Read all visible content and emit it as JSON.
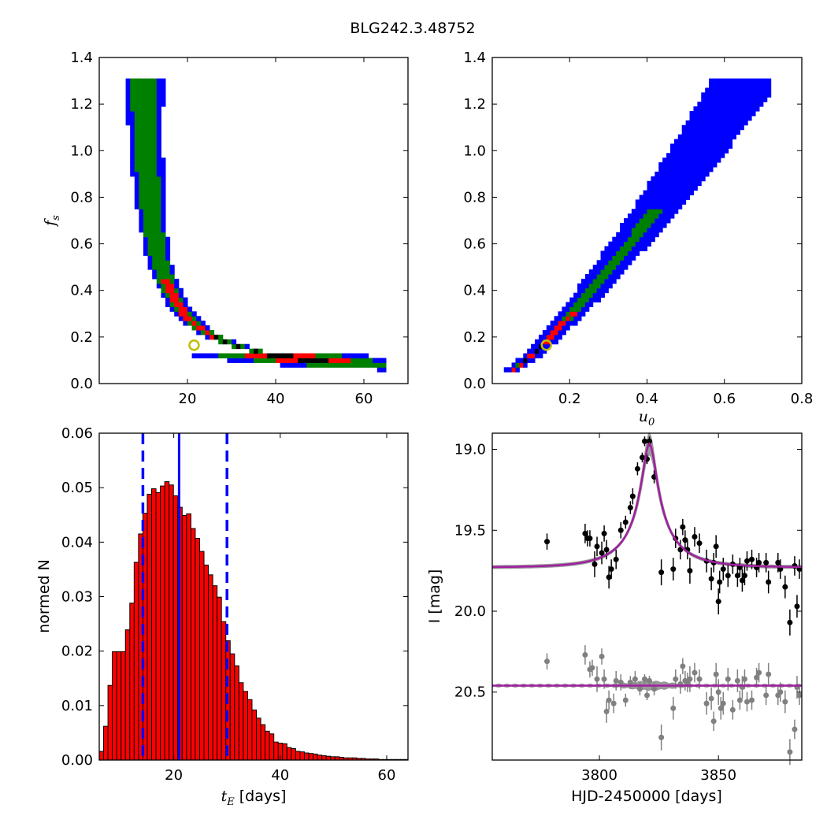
{
  "figure": {
    "title": "BLG242.3.48752"
  },
  "chart_data": [
    {
      "id": "fs_vs_tE",
      "type": "heatmap",
      "xlabel": "",
      "ylabel": "f_s",
      "ylabel_main": "f",
      "ylabel_sub": "s",
      "xlim": [
        0,
        70
      ],
      "ylim": [
        0.0,
        1.4
      ],
      "xticks": [
        20,
        40,
        60
      ],
      "xtick_labels": [
        "20",
        "40",
        "60"
      ],
      "yticks": [
        0.0,
        0.2,
        0.4,
        0.6,
        0.8,
        1.0,
        1.2,
        1.4
      ],
      "ytick_labels": [
        "0.0",
        "0.2",
        "0.4",
        "0.6",
        "0.8",
        "1.0",
        "1.2",
        "1.4"
      ],
      "levels": [
        {
          "name": "blue",
          "color": "#0000ff"
        },
        {
          "name": "green",
          "color": "#008000"
        },
        {
          "name": "red",
          "color": "#ff0000"
        },
        {
          "name": "black",
          "color": "#000000"
        }
      ],
      "best_fit": {
        "x": 21.5,
        "y": 0.165,
        "color": "#bfbf00"
      }
    },
    {
      "id": "fs_vs_u0",
      "type": "heatmap",
      "xlabel": "u_0",
      "xlabel_main": "u",
      "xlabel_sub": "0",
      "ylabel": "",
      "xlim": [
        0.0,
        0.8
      ],
      "ylim": [
        0.0,
        1.4
      ],
      "xticks": [
        0.2,
        0.4,
        0.6,
        0.8
      ],
      "xtick_labels": [
        "0.2",
        "0.4",
        "0.6",
        "0.8"
      ],
      "yticks": [
        0.0,
        0.2,
        0.4,
        0.6,
        0.8,
        1.0,
        1.2,
        1.4
      ],
      "ytick_labels": [
        "0.0",
        "0.2",
        "0.4",
        "0.6",
        "0.8",
        "1.0",
        "1.2",
        "1.4"
      ],
      "best_fit": {
        "x": 0.14,
        "y": 0.165,
        "color": "#bfbf00"
      }
    },
    {
      "id": "tE_histogram",
      "type": "bar",
      "xlabel_main": "t",
      "xlabel_sub": "E",
      "xlabel_rest": " [days]",
      "ylabel": "normed N",
      "xlim": [
        6,
        64
      ],
      "ylim": [
        0.0,
        0.06
      ],
      "xticks": [
        20,
        40,
        60
      ],
      "xtick_labels": [
        "20",
        "40",
        "60"
      ],
      "yticks": [
        0.0,
        0.01,
        0.02,
        0.03,
        0.04,
        0.05,
        0.06
      ],
      "ytick_labels": [
        "0.00",
        "0.01",
        "0.02",
        "0.03",
        "0.04",
        "0.05",
        "0.06"
      ],
      "bin_start": 6.0,
      "bin_width": 0.82,
      "values": [
        0.0016,
        0.0062,
        0.0137,
        0.0199,
        0.0199,
        0.0199,
        0.0239,
        0.0288,
        0.0363,
        0.0415,
        0.0453,
        0.0488,
        0.0498,
        0.0491,
        0.0503,
        0.0511,
        0.0505,
        0.0485,
        0.0464,
        0.0449,
        0.0452,
        0.0425,
        0.0407,
        0.0383,
        0.0358,
        0.034,
        0.032,
        0.0299,
        0.0254,
        0.0219,
        0.0195,
        0.0173,
        0.0142,
        0.0126,
        0.0111,
        0.0092,
        0.0077,
        0.0065,
        0.0053,
        0.0048,
        0.0033,
        0.0031,
        0.003,
        0.0023,
        0.0021,
        0.0016,
        0.0015,
        0.0013,
        0.0012,
        0.0011,
        0.0009,
        0.0008,
        0.0007,
        0.0006,
        0.0006,
        0.0005,
        0.0004,
        0.0004,
        0.0004,
        0.0003,
        0.0003,
        0.0002,
        0.0002,
        0.0002,
        0.0001,
        0.0001,
        0.0001,
        0.0001,
        0.0001,
        0.0001,
        0.0001
      ],
      "bar_color": "#ff0000",
      "median": 21.0,
      "lower": 14.2,
      "upper": 30.0,
      "line_color": "#0000ff"
    },
    {
      "id": "light_curve",
      "type": "scatter",
      "xlabel": "HJD-2450000 [days]",
      "ylabel": "I [mag]",
      "xlim": [
        3755,
        3885
      ],
      "ylim": [
        20.92,
        18.9
      ],
      "xticks": [
        3800,
        3850
      ],
      "xtick_labels": [
        "3800",
        "3850"
      ],
      "yticks": [
        19.0,
        19.5,
        20.0,
        20.5
      ],
      "ytick_labels": [
        "19.0",
        "19.5",
        "20.0",
        "20.5"
      ],
      "model": {
        "t0": 3821.0,
        "tE": 21.0,
        "u0": 0.14,
        "fs": 0.165,
        "baseline": 19.73
      },
      "residual_baseline": 20.46,
      "model_color": "#a020a0",
      "band_color": "#808080",
      "points": [
        [
          3778,
          19.57,
          0.05
        ],
        [
          3794,
          19.52,
          0.06
        ],
        [
          3795,
          19.55,
          0.05
        ],
        [
          3796,
          19.55,
          0.05
        ],
        [
          3798,
          19.71,
          0.08
        ],
        [
          3799,
          19.6,
          0.06
        ],
        [
          3801,
          19.64,
          0.07
        ],
        [
          3802,
          19.52,
          0.05
        ],
        [
          3803,
          19.62,
          0.06
        ],
        [
          3804,
          19.79,
          0.07
        ],
        [
          3805,
          19.74,
          0.06
        ],
        [
          3807,
          19.68,
          0.06
        ],
        [
          3809,
          19.5,
          0.05
        ],
        [
          3811,
          19.45,
          0.04
        ],
        [
          3813,
          19.36,
          0.04
        ],
        [
          3814,
          19.29,
          0.05
        ],
        [
          3816,
          19.12,
          0.04
        ],
        [
          3818,
          19.05,
          0.03
        ],
        [
          3819,
          18.95,
          0.03
        ],
        [
          3820,
          19.06,
          0.03
        ],
        [
          3821,
          18.95,
          0.03
        ],
        [
          3823,
          19.17,
          0.04
        ],
        [
          3826,
          19.76,
          0.08
        ],
        [
          3831,
          19.74,
          0.07
        ],
        [
          3832,
          19.55,
          0.06
        ],
        [
          3834,
          19.62,
          0.06
        ],
        [
          3835,
          19.48,
          0.05
        ],
        [
          3836,
          19.56,
          0.06
        ],
        [
          3837,
          19.62,
          0.06
        ],
        [
          3838,
          19.75,
          0.08
        ],
        [
          3840,
          19.54,
          0.06
        ],
        [
          3842,
          19.58,
          0.06
        ],
        [
          3845,
          19.69,
          0.07
        ],
        [
          3847,
          19.8,
          0.07
        ],
        [
          3848,
          19.7,
          0.06
        ],
        [
          3849,
          19.6,
          0.07
        ],
        [
          3850,
          19.94,
          0.08
        ],
        [
          3850.5,
          19.82,
          0.07
        ],
        [
          3852,
          19.74,
          0.07
        ],
        [
          3854,
          19.78,
          0.07
        ],
        [
          3856,
          19.71,
          0.06
        ],
        [
          3858,
          19.78,
          0.07
        ],
        [
          3859,
          19.73,
          0.06
        ],
        [
          3860,
          19.81,
          0.07
        ],
        [
          3861,
          19.78,
          0.06
        ],
        [
          3862,
          19.69,
          0.06
        ],
        [
          3864,
          19.68,
          0.06
        ],
        [
          3866,
          19.73,
          0.06
        ],
        [
          3867,
          19.7,
          0.06
        ],
        [
          3870,
          19.7,
          0.06
        ],
        [
          3871,
          19.82,
          0.07
        ],
        [
          3875,
          19.7,
          0.06
        ],
        [
          3876,
          19.74,
          0.06
        ],
        [
          3878,
          19.85,
          0.07
        ],
        [
          3880,
          20.07,
          0.08
        ],
        [
          3882,
          19.72,
          0.06
        ],
        [
          3883,
          19.97,
          0.07
        ],
        [
          3884,
          19.74,
          0.06
        ]
      ],
      "residual_points": [
        [
          3778,
          20.31,
          0.05
        ],
        [
          3794,
          20.27,
          0.06
        ],
        [
          3796,
          20.36,
          0.05
        ],
        [
          3797,
          20.35,
          0.05
        ],
        [
          3799,
          20.42,
          0.08
        ],
        [
          3801,
          20.28,
          0.05
        ],
        [
          3802,
          20.42,
          0.06
        ],
        [
          3803,
          20.62,
          0.07
        ],
        [
          3804,
          20.55,
          0.06
        ],
        [
          3806,
          20.57,
          0.06
        ],
        [
          3807,
          20.43,
          0.06
        ],
        [
          3809,
          20.44,
          0.05
        ],
        [
          3811,
          20.55,
          0.04
        ],
        [
          3813,
          20.44,
          0.04
        ],
        [
          3815,
          20.42,
          0.05
        ],
        [
          3817,
          20.48,
          0.04
        ],
        [
          3819,
          20.42,
          0.03
        ],
        [
          3820,
          20.52,
          0.03
        ],
        [
          3821,
          20.43,
          0.03
        ],
        [
          3823,
          20.48,
          0.04
        ],
        [
          3826,
          20.78,
          0.08
        ],
        [
          3831,
          20.6,
          0.07
        ],
        [
          3832,
          20.42,
          0.06
        ],
        [
          3834,
          20.45,
          0.06
        ],
        [
          3835,
          20.34,
          0.05
        ],
        [
          3836,
          20.43,
          0.06
        ],
        [
          3837,
          20.44,
          0.06
        ],
        [
          3838,
          20.42,
          0.08
        ],
        [
          3840,
          20.38,
          0.06
        ],
        [
          3842,
          20.42,
          0.06
        ],
        [
          3845,
          20.57,
          0.07
        ],
        [
          3847,
          20.54,
          0.07
        ],
        [
          3848,
          20.68,
          0.06
        ],
        [
          3849,
          20.39,
          0.07
        ],
        [
          3850,
          20.5,
          0.08
        ],
        [
          3851,
          20.6,
          0.07
        ],
        [
          3852,
          20.57,
          0.07
        ],
        [
          3854,
          20.42,
          0.07
        ],
        [
          3856,
          20.61,
          0.06
        ],
        [
          3858,
          20.43,
          0.07
        ],
        [
          3859,
          20.55,
          0.06
        ],
        [
          3860,
          20.47,
          0.07
        ],
        [
          3861,
          20.42,
          0.06
        ],
        [
          3862,
          20.56,
          0.06
        ],
        [
          3864,
          20.55,
          0.06
        ],
        [
          3866,
          20.41,
          0.06
        ],
        [
          3867,
          20.38,
          0.06
        ],
        [
          3870,
          20.52,
          0.06
        ],
        [
          3871,
          20.39,
          0.07
        ],
        [
          3875,
          20.52,
          0.06
        ],
        [
          3876,
          20.5,
          0.06
        ],
        [
          3878,
          20.56,
          0.07
        ],
        [
          3880,
          20.87,
          0.08
        ],
        [
          3882,
          20.73,
          0.06
        ],
        [
          3883,
          20.47,
          0.07
        ],
        [
          3884,
          20.52,
          0.06
        ]
      ]
    }
  ]
}
